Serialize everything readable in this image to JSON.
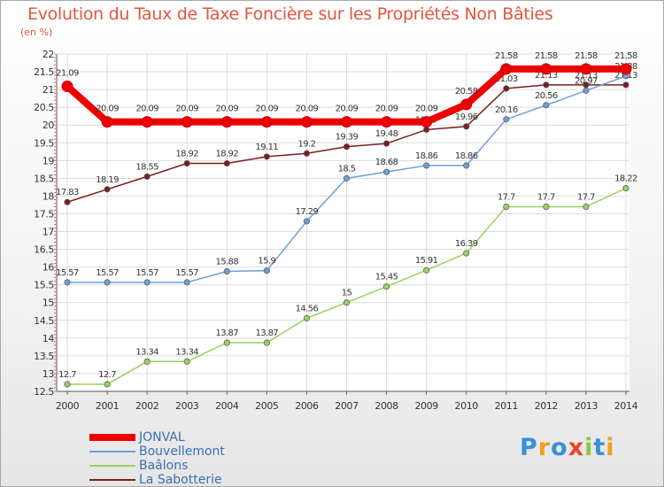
{
  "title": "Evolution du Taux de Taxe Foncière sur les Propriétés Non Bâties",
  "unit": "(en %)",
  "logo": {
    "text": "Proxiti",
    "letters": [
      {
        "ch": "P",
        "color": "#3a8fd9"
      },
      {
        "ch": "r",
        "color": "#f0a020"
      },
      {
        "ch": "o",
        "color": "#3a8fd9"
      },
      {
        "ch": "x",
        "color": "#e8442a"
      },
      {
        "ch": "i",
        "color": "#8cc63f"
      },
      {
        "ch": "t",
        "color": "#3a8fd9"
      },
      {
        "ch": "i",
        "color": "#f0a020"
      }
    ]
  },
  "chart_data": {
    "type": "line",
    "title": "Evolution du Taux de Taxe Foncière sur les Propriétés Non Bâties",
    "ylabel": "(en %)",
    "x": [
      "2000",
      "2001",
      "2002",
      "2003",
      "2004",
      "2005",
      "2006",
      "2007",
      "2008",
      "2009",
      "2010",
      "2011",
      "2012",
      "2013",
      "2014"
    ],
    "ylim": [
      12.5,
      22
    ],
    "yticks": [
      "12.5",
      "13",
      "13.5",
      "14",
      "14.5",
      "15",
      "15.5",
      "16",
      "16.5",
      "17",
      "17.5",
      "18",
      "18.5",
      "19",
      "19.5",
      "20",
      "20.5",
      "21",
      "21.5",
      "22"
    ],
    "grid": true,
    "legend": "bottom-left",
    "series": [
      {
        "name": "La Sabotterie",
        "color": "#7a1f1f",
        "width": 1.5,
        "values": [
          17.83,
          18.19,
          18.55,
          18.92,
          18.92,
          19.11,
          19.2,
          19.39,
          19.48,
          19.87,
          19.96,
          21.03,
          21.13,
          21.13,
          21.13
        ],
        "labels": [
          "17.83",
          "18.19",
          "18.55",
          "18.92",
          "18.92",
          "19.11",
          "19.2",
          "19.39",
          "19.48",
          "19.87",
          "19.96",
          "21.03",
          "21.13",
          "21.13",
          "21.13"
        ]
      },
      {
        "name": "Baâlons",
        "color": "#99d161",
        "width": 1.5,
        "values": [
          12.7,
          12.7,
          13.34,
          13.34,
          13.87,
          13.87,
          14.56,
          15,
          15.45,
          15.91,
          16.39,
          17.7,
          17.7,
          17.7,
          18.22
        ],
        "labels": [
          "12.7",
          "12.7",
          "13.34",
          "13.34",
          "13.87",
          "13.87",
          "14.56",
          "15",
          "15.45",
          "15.91",
          "16.39",
          "17.7",
          "17.7",
          "17.7",
          "18.22"
        ]
      },
      {
        "name": "Bouvellemont",
        "color": "#6ea0d6",
        "width": 1.5,
        "values": [
          15.57,
          15.57,
          15.57,
          15.57,
          15.88,
          15.9,
          17.29,
          18.5,
          18.68,
          18.86,
          18.86,
          20.16,
          20.56,
          20.97,
          21.38
        ],
        "labels": [
          "15.57",
          "15.57",
          "15.57",
          "15.57",
          "15.88",
          "15.9",
          "17.29",
          "18.5",
          "18.68",
          "18.86",
          "18.86",
          "20.16",
          "20.56",
          "20.97",
          "21.38"
        ]
      },
      {
        "name": "JONVAL",
        "color": "#ee0000",
        "width": 8,
        "values": [
          21.09,
          20.09,
          20.09,
          20.09,
          20.09,
          20.09,
          20.09,
          20.09,
          20.09,
          20.09,
          20.58,
          21.58,
          21.58,
          21.58,
          21.58
        ],
        "labels": [
          "21.09",
          "20.09",
          "20.09",
          "20.09",
          "20.09",
          "20.09",
          "20.09",
          "20.09",
          "20.09",
          "20.09",
          "20.58",
          "21.58",
          "21.58",
          "21.58",
          "21.58"
        ]
      }
    ],
    "legend_order": [
      "JONVAL",
      "Bouvellemont",
      "Baâlons",
      "La Sabotterie"
    ]
  }
}
